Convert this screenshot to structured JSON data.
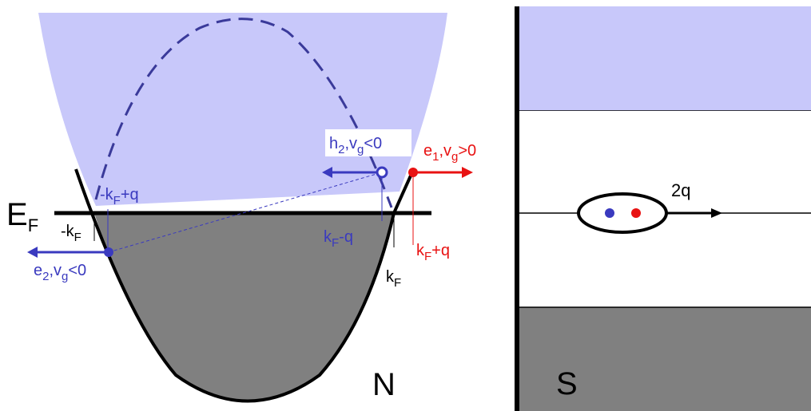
{
  "colors": {
    "band_fill": "#c8c8fa",
    "filled_gray": "#808080",
    "electron_blue": "#3a3abf",
    "electron_red": "#e81212",
    "dashed_curve": "#3a3a9a",
    "text_black": "#000000"
  },
  "left_panel": {
    "fermi_label": {
      "main": "E",
      "sub": "F"
    },
    "metal_label": "N",
    "neg_kf": {
      "main": "-k",
      "sub": "F"
    },
    "neg_kf_plus_q": {
      "pre": "-k",
      "sub": "F",
      "post": "+q"
    },
    "kf": {
      "main": "k",
      "sub": "F"
    },
    "kf_minus_q": {
      "main": "k",
      "sub": "F",
      "post": "-q"
    },
    "kf_plus_q": {
      "main": "k",
      "sub": "F",
      "post": "+q"
    },
    "h2": {
      "p1": "h",
      "s1": "2",
      "p2": ",v",
      "s2": "g",
      "p3": "<0"
    },
    "e1": {
      "p1": "e",
      "s1": "1",
      "p2": ",v",
      "s2": "g",
      "p3": ">0"
    },
    "e2": {
      "p1": "e",
      "s1": "2",
      "p2": ",v",
      "s2": "g",
      "p3": "<0"
    }
  },
  "right_panel": {
    "momentum_label": "2q",
    "superconductor_label": "S"
  }
}
